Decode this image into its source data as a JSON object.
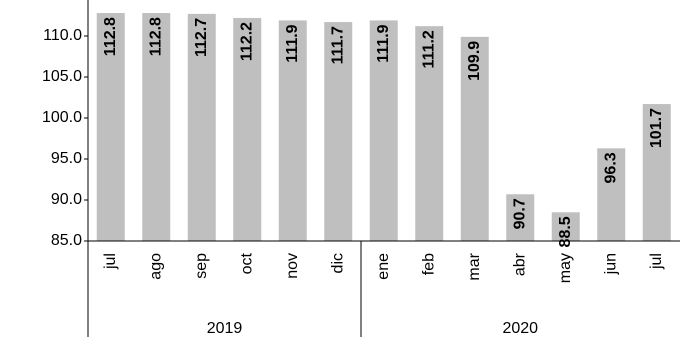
{
  "chart_data": {
    "type": "bar",
    "color": "#bfbfbf",
    "groups": [
      {
        "label": "2019",
        "categories": [
          "jul",
          "ago",
          "sep",
          "oct",
          "nov",
          "dic"
        ],
        "values": [
          112.8,
          112.8,
          112.7,
          112.2,
          111.9,
          111.7
        ]
      },
      {
        "label": "2020",
        "categories": [
          "ene",
          "feb",
          "mar",
          "abr",
          "may",
          "jun",
          "jul"
        ],
        "values": [
          111.9,
          111.2,
          109.9,
          90.7,
          88.5,
          96.3,
          101.7
        ]
      }
    ],
    "ylim": [
      85,
      115
    ],
    "yticks": [
      {
        "value": 85,
        "label": "85.0"
      },
      {
        "value": 90,
        "label": "90.0"
      },
      {
        "value": 95,
        "label": "95.0"
      },
      {
        "value": 100,
        "label": "100.0"
      },
      {
        "value": 105,
        "label": "105.0"
      },
      {
        "value": 110,
        "label": "110.0"
      }
    ],
    "grid": false
  }
}
